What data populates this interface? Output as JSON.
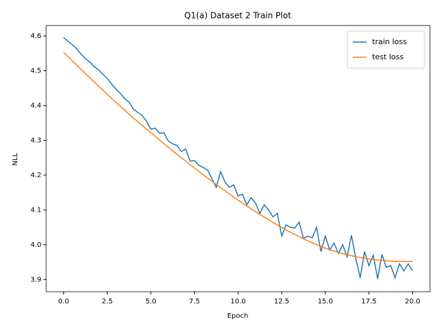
{
  "chart_data": {
    "type": "line",
    "title": "Q1(a) Dataset 2 Train Plot",
    "xlabel": "Epoch",
    "ylabel": "NLL",
    "series": [
      {
        "name": "train loss",
        "color": "#1f77b4",
        "x": [
          0,
          0.25,
          0.5,
          0.75,
          1,
          1.25,
          1.5,
          1.75,
          2,
          2.25,
          2.5,
          2.75,
          3,
          3.25,
          3.5,
          3.75,
          4,
          4.25,
          4.5,
          4.75,
          5,
          5.25,
          5.5,
          5.75,
          6,
          6.25,
          6.5,
          6.75,
          7,
          7.25,
          7.5,
          7.75,
          8,
          8.25,
          8.5,
          8.75,
          9,
          9.25,
          9.5,
          9.75,
          10,
          10.25,
          10.5,
          10.75,
          11,
          11.25,
          11.5,
          11.75,
          12,
          12.25,
          12.5,
          12.75,
          13,
          13.25,
          13.5,
          13.75,
          14,
          14.25,
          14.5,
          14.75,
          15,
          15.25,
          15.5,
          15.75,
          16,
          16.25,
          16.5,
          16.75,
          17,
          17.25,
          17.5,
          17.75,
          18,
          18.25,
          18.5,
          18.75,
          19,
          19.25,
          19.5,
          19.75,
          20
        ],
        "values": [
          4.595,
          4.585,
          4.575,
          4.563,
          4.548,
          4.535,
          4.525,
          4.512,
          4.503,
          4.49,
          4.478,
          4.462,
          4.447,
          4.435,
          4.42,
          4.41,
          4.39,
          4.38,
          4.372,
          4.355,
          4.332,
          4.335,
          4.32,
          4.322,
          4.298,
          4.29,
          4.285,
          4.268,
          4.275,
          4.24,
          4.242,
          4.228,
          4.222,
          4.215,
          4.19,
          4.165,
          4.21,
          4.18,
          4.165,
          4.172,
          4.14,
          4.145,
          4.115,
          4.135,
          4.12,
          4.09,
          4.115,
          4.1,
          4.08,
          4.09,
          4.025,
          4.057,
          4.05,
          4.048,
          4.065,
          4.018,
          4.025,
          4.02,
          4.05,
          3.98,
          4.025,
          3.985,
          4.005,
          3.975,
          4.0,
          3.965,
          4.027,
          3.96,
          3.905,
          3.98,
          3.94,
          3.97,
          3.902,
          3.972,
          3.935,
          3.94,
          3.905,
          3.945,
          3.925,
          3.945,
          3.925
        ]
      },
      {
        "name": "test loss",
        "color": "#ff7f0e",
        "x": [
          0,
          1,
          2,
          3,
          4,
          5,
          6,
          7,
          8,
          9,
          10,
          11,
          12,
          13,
          14,
          15,
          16,
          17,
          18,
          19,
          20
        ],
        "values": [
          4.553,
          4.504,
          4.456,
          4.409,
          4.364,
          4.322,
          4.28,
          4.24,
          4.201,
          4.164,
          4.128,
          4.095,
          4.064,
          4.036,
          4.011,
          3.99,
          3.974,
          3.963,
          3.956,
          3.952,
          3.952
        ]
      }
    ],
    "xlim": [
      -1,
      21
    ],
    "xticks": [
      {
        "value": 0,
        "label": "0.0"
      },
      2.5,
      {
        "value": 5,
        "label": "5.0"
      },
      7.5,
      {
        "value": 10,
        "label": "10.0"
      },
      12.5,
      {
        "value": 15,
        "label": "15.0"
      },
      17.5,
      {
        "value": 20,
        "label": "20.0"
      }
    ],
    "ylim": [
      3.865,
      4.63
    ],
    "yticks": [
      3.9,
      {
        "value": 4,
        "label": "4.0"
      },
      4.1,
      4.2,
      4.3,
      4.4,
      4.5,
      4.6
    ],
    "legend": "upper right",
    "grid": false
  }
}
